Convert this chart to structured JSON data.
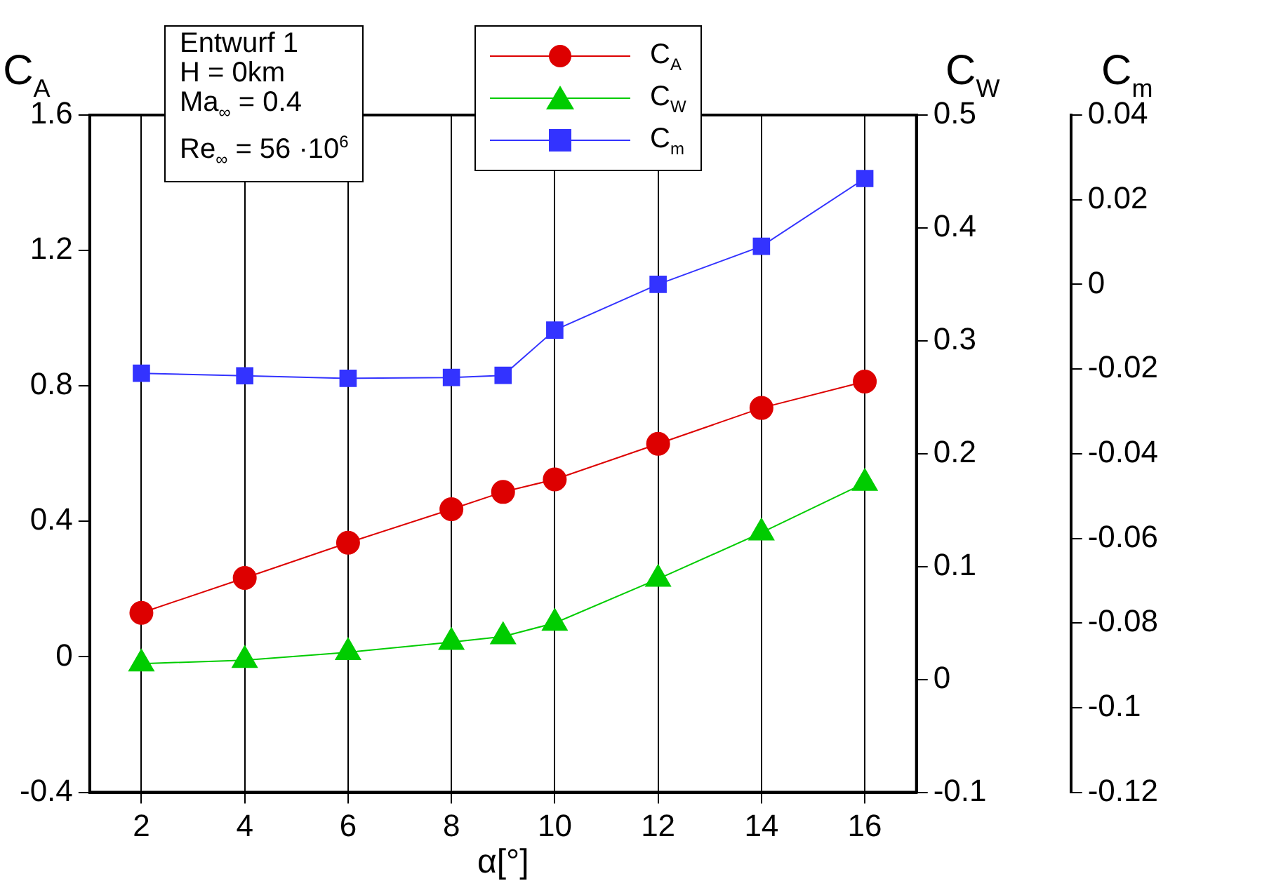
{
  "chart_data": {
    "type": "line",
    "xlabel": "α[°]",
    "ylabel": "C$_{A}$",
    "y2label": "C$_{W}$",
    "y3label": "C$_{m}$",
    "x": [
      2,
      4,
      6,
      8,
      9,
      10,
      12,
      14,
      16
    ],
    "xlim": [
      1,
      17
    ],
    "xticks": [
      2,
      4,
      6,
      8,
      10,
      12,
      14,
      16
    ],
    "ylim": [
      -0.4,
      1.6
    ],
    "yticks": [
      -0.4,
      0,
      0.4,
      0.8,
      1.2,
      1.6
    ],
    "y2lim": [
      -0.1,
      0.5
    ],
    "y2ticks": [
      -0.1,
      0,
      0.1,
      0.2,
      0.3,
      0.4,
      0.5
    ],
    "y3lim": [
      -0.12,
      0.04
    ],
    "y3ticks": [
      -0.12,
      -0.1,
      -0.08,
      -0.06,
      -0.04,
      -0.02,
      0,
      0.02,
      0.04
    ],
    "series": [
      {
        "name": "C$_{A}$",
        "color": "#dd0000",
        "marker": "circle",
        "values": [
          0.13,
          0.233,
          0.337,
          0.436,
          0.487,
          0.524,
          0.629,
          0.735,
          0.813
        ]
      },
      {
        "name": "C$_{W}$",
        "color": "#00cc00",
        "marker": "triangle",
        "axis": "y2",
        "values": [
          0.014,
          0.017,
          0.024,
          0.033,
          0.038,
          0.05,
          0.089,
          0.13,
          0.174
        ]
      },
      {
        "name": "C$_{m}$",
        "color": "#3333ff",
        "marker": "square",
        "axis": "y3",
        "values": [
          -0.021,
          -0.0216,
          -0.0222,
          -0.022,
          -0.0215,
          -0.0108,
          0,
          0.009,
          0.025
        ]
      }
    ],
    "annotations": [
      "Entwurf 1",
      "H = 0km",
      "Ma$_{∞}$ = 0.4",
      "Re$_{∞}$ = 56 ·10$^{6}$"
    ],
    "grid": "x",
    "legend": "top",
    "line_style": "solid"
  }
}
